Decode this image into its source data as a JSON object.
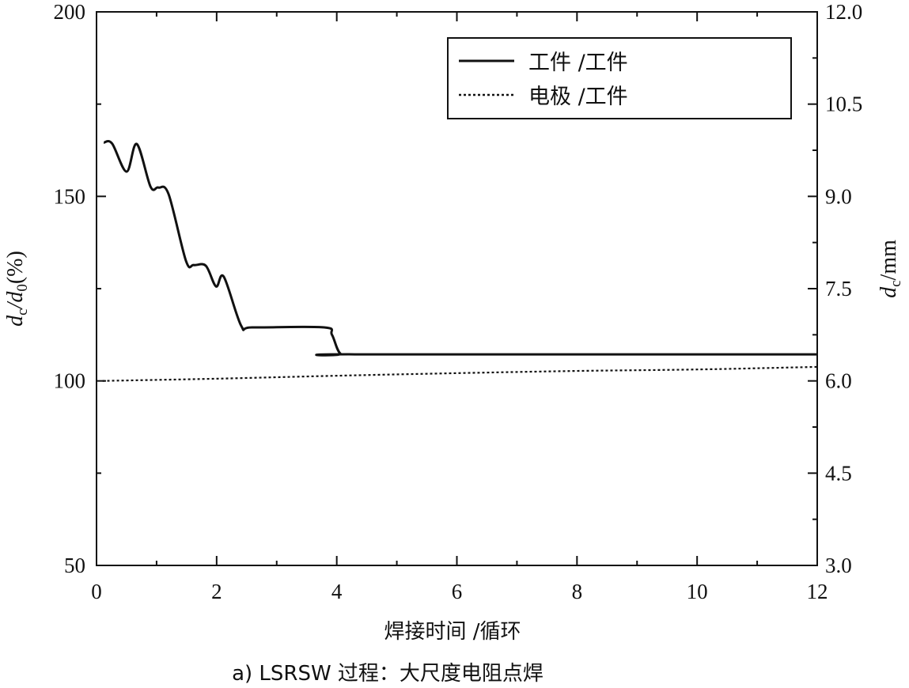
{
  "chart_data": {
    "type": "line",
    "title": "",
    "caption": "a) LSRSW 过程：大尺度电阻点焊",
    "xlabel": "焊接时间 /循环",
    "ylabel_parts": [
      "d",
      "c",
      "/d",
      "0",
      "(%)"
    ],
    "y2label_parts": [
      "d",
      "c",
      "/mm"
    ],
    "xlim": [
      0,
      12
    ],
    "ylim": [
      50,
      200
    ],
    "y2lim": [
      3.0,
      12.0
    ],
    "xticks": [
      "0",
      "2",
      "4",
      "6",
      "8",
      "10",
      "12"
    ],
    "yticks": [
      "50",
      "100",
      "150",
      "200"
    ],
    "y2ticks": [
      "3.0",
      "4.5",
      "6.0",
      "7.5",
      "9.0",
      "10.5",
      "12.0"
    ],
    "grid": false,
    "legend_position": "top-right",
    "series": [
      {
        "name": "工件 /工件",
        "style": "solid",
        "color": "#111111",
        "x": [
          0.12,
          0.26,
          0.5,
          0.67,
          0.9,
          1.03,
          1.2,
          1.49,
          1.62,
          1.82,
          1.99,
          2.12,
          2.41,
          2.6,
          3.79,
          3.92,
          4.06,
          4.3,
          12.0
        ],
        "y": [
          164.6,
          164.3,
          156.7,
          164.2,
          152.6,
          152.4,
          150.6,
          132.5,
          131.4,
          131.2,
          125.6,
          128.2,
          114.9,
          114.5,
          114.5,
          112.5,
          107.4,
          107.2,
          107.2
        ]
      },
      {
        "name": "电极 /工件",
        "style": "dotted",
        "color": "#111111",
        "x": [
          0.1,
          2,
          4,
          6,
          8,
          10,
          12
        ],
        "y": [
          100.0,
          100.6,
          101.4,
          102.1,
          102.7,
          103.1,
          103.8
        ]
      }
    ]
  }
}
